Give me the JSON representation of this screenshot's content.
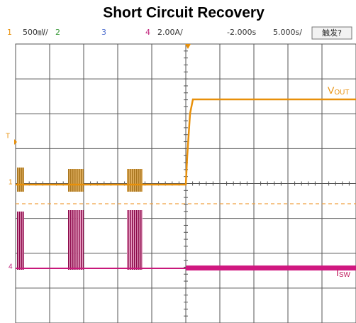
{
  "title": "Short Circuit Recovery",
  "header": {
    "ch1": "1",
    "ch1_scale": "500㎷/",
    "ch2": "2",
    "ch3": "3",
    "ch4": "4",
    "ch4_scale": "2.00A/",
    "delay": "-2.000s",
    "timebase": "5.000s/",
    "trigger_button": "触发?"
  },
  "markers": {
    "trigger": "T",
    "ch1": "1",
    "ch4": "4"
  },
  "traces": {
    "vout": {
      "main": "V",
      "sub": "OUT"
    },
    "isw": {
      "main": "I",
      "sub": "SW"
    }
  }
}
